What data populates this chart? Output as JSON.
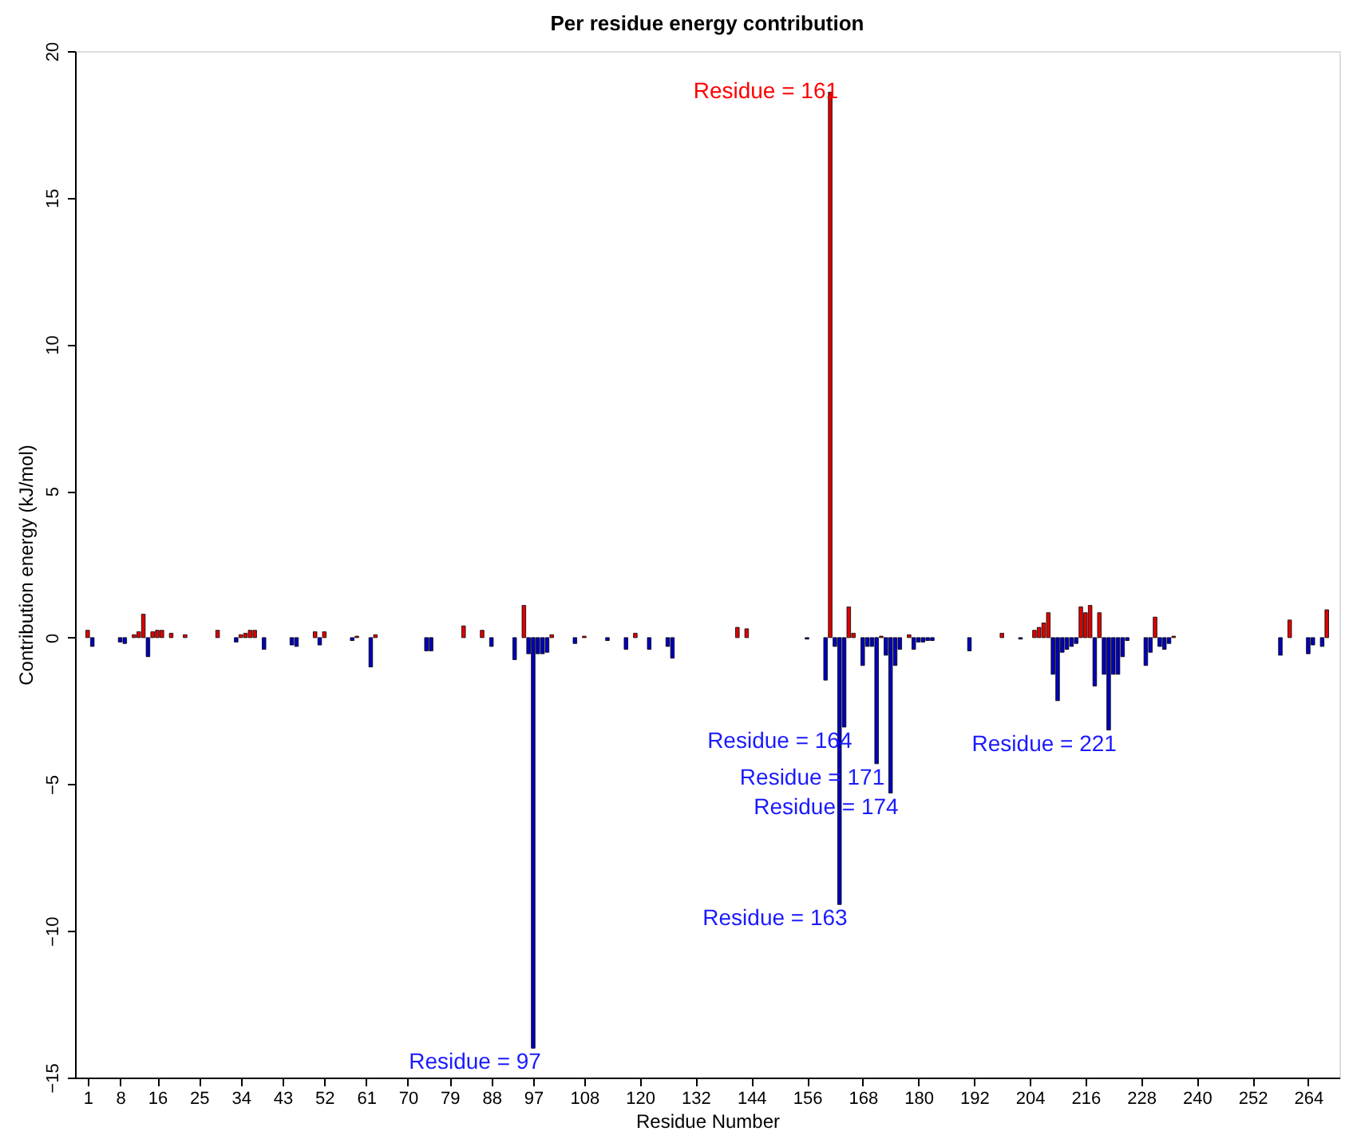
{
  "chart_data": {
    "type": "bar",
    "title": "Per residue energy contribution",
    "xlabel": "Residue Number",
    "ylabel": "Contribution energy (kJ/mol)",
    "xlim": [
      0,
      269
    ],
    "xticks": [
      1,
      8,
      16,
      25,
      34,
      43,
      52,
      61,
      70,
      79,
      88,
      97,
      108,
      120,
      132,
      144,
      156,
      168,
      180,
      192,
      204,
      216,
      228,
      240,
      252,
      264
    ],
    "ylim": [
      -15,
      20
    ],
    "yticks": [
      -15,
      -10,
      -5,
      0,
      5,
      10,
      15,
      20
    ],
    "grid": false,
    "series": [
      {
        "color": "#dd0000",
        "x": [
          1,
          11,
          12,
          13,
          15,
          16,
          17,
          19,
          22,
          29,
          34,
          35,
          36,
          37,
          50,
          52,
          59,
          63,
          82,
          86,
          95,
          101,
          108,
          119,
          141,
          143,
          161,
          165,
          166,
          172,
          178,
          198,
          205,
          206,
          207,
          208,
          215,
          216,
          217,
          219,
          231,
          235,
          260,
          268
        ],
        "values": [
          0.25,
          0.1,
          0.2,
          0.8,
          0.2,
          0.25,
          0.25,
          0.15,
          0.1,
          0.25,
          0.1,
          0.15,
          0.25,
          0.25,
          0.2,
          0.2,
          0.05,
          0.1,
          0.4,
          0.25,
          1.1,
          0.1,
          0.05,
          0.15,
          0.35,
          0.3,
          18.6,
          1.05,
          0.15,
          0.05,
          0.1,
          0.15,
          0.25,
          0.35,
          0.5,
          0.85,
          1.05,
          0.85,
          1.1,
          0.85,
          0.7,
          0.05,
          0.6,
          0.95
        ]
      },
      {
        "color": "#0000bb",
        "x": [
          2,
          8,
          9,
          14,
          33,
          39,
          45,
          46,
          51,
          58,
          62,
          74,
          75,
          88,
          93,
          96,
          97,
          98,
          99,
          100,
          106,
          113,
          117,
          122,
          126,
          127,
          156,
          160,
          162,
          163,
          164,
          168,
          169,
          170,
          171,
          173,
          174,
          175,
          176,
          179,
          180,
          181,
          182,
          183,
          191,
          202,
          209,
          210,
          211,
          212,
          213,
          214,
          218,
          220,
          221,
          222,
          223,
          224,
          225,
          229,
          230,
          232,
          233,
          234,
          258,
          264,
          265,
          267
        ],
        "values": [
          -0.3,
          -0.15,
          -0.2,
          -0.65,
          -0.15,
          -0.4,
          -0.25,
          -0.3,
          -0.25,
          -0.1,
          -1.0,
          -0.45,
          -0.45,
          -0.3,
          -0.75,
          -0.55,
          -14,
          -0.55,
          -0.55,
          -0.5,
          -0.2,
          -0.1,
          -0.4,
          -0.4,
          -0.3,
          -0.7,
          -0.05,
          -1.45,
          -0.3,
          -9.1,
          -3.05,
          -0.95,
          -0.3,
          -0.3,
          -4.3,
          -0.6,
          -5.3,
          -0.95,
          -0.4,
          -0.4,
          -0.15,
          -0.15,
          -0.1,
          -0.1,
          -0.45,
          -0.05,
          -1.25,
          -2.15,
          -0.5,
          -0.4,
          -0.3,
          -0.2,
          -1.65,
          -1.25,
          -3.15,
          -1.25,
          -1.25,
          -0.65,
          -0.1,
          -0.95,
          -0.5,
          -0.3,
          -0.4,
          -0.2,
          -0.6,
          -0.55,
          -0.25,
          -0.3
        ]
      }
    ],
    "annotations": [
      {
        "text": "Residue = 161",
        "x": 161,
        "y": 18.6
      },
      {
        "text": "Residue = 97",
        "x": 97,
        "y": -14
      },
      {
        "text": "Residue = 163",
        "x": 163,
        "y": -9.1
      },
      {
        "text": "Residue = 164",
        "x": 164,
        "y": -3.05
      },
      {
        "text": "Residue = 171",
        "x": 171,
        "y": -4.3
      },
      {
        "text": "Residue = 174",
        "x": 174,
        "y": -5.3
      },
      {
        "text": "Residue = 221",
        "x": 221,
        "y": -3.15
      }
    ]
  }
}
